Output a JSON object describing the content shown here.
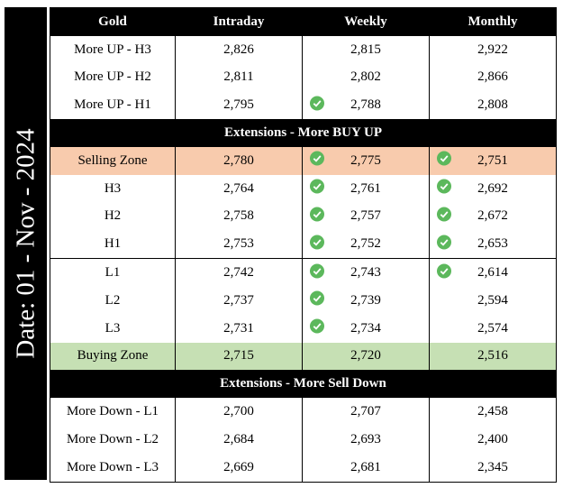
{
  "date_label": "Date: 01 - Nov - 2024",
  "table": {
    "header": [
      "Gold",
      "Intraday",
      "Weekly",
      "Monthly"
    ],
    "rows": [
      {
        "cells": [
          "More UP - H3",
          "2,826",
          "2,815",
          "2,922"
        ]
      },
      {
        "cells": [
          "More UP - H2",
          "2,811",
          "2,802",
          "2,866"
        ]
      },
      {
        "cells": [
          "More UP - H1",
          "2,795",
          "2,788",
          "2,808"
        ],
        "checks": [
          false,
          false,
          true,
          false
        ]
      },
      {
        "band": "Extensions - More BUY UP"
      },
      {
        "cells": [
          "Selling Zone",
          "2,780",
          "2,775",
          "2,751"
        ],
        "checks": [
          false,
          false,
          true,
          true
        ],
        "shade": "#f8cbad"
      },
      {
        "cells": [
          "H3",
          "2,764",
          "2,761",
          "2,692"
        ],
        "checks": [
          false,
          false,
          true,
          true
        ]
      },
      {
        "cells": [
          "H2",
          "2,758",
          "2,757",
          "2,672"
        ],
        "checks": [
          false,
          false,
          true,
          true
        ]
      },
      {
        "cells": [
          "H1",
          "2,753",
          "2,752",
          "2,653"
        ],
        "checks": [
          false,
          false,
          true,
          true
        ]
      },
      {
        "cells": [
          "L1",
          "2,742",
          "2,743",
          "2,614"
        ],
        "checks": [
          false,
          false,
          true,
          true
        ],
        "rule_above": true
      },
      {
        "cells": [
          "L2",
          "2,737",
          "2,739",
          "2,594"
        ],
        "checks": [
          false,
          false,
          true,
          false
        ]
      },
      {
        "cells": [
          "L3",
          "2,731",
          "2,734",
          "2,574"
        ],
        "checks": [
          false,
          false,
          true,
          false
        ]
      },
      {
        "cells": [
          "Buying Zone",
          "2,715",
          "2,720",
          "2,516"
        ],
        "shade": "#c6e0b4"
      },
      {
        "band": "Extensions - More Sell Down"
      },
      {
        "cells": [
          "More Down - L1",
          "2,700",
          "2,707",
          "2,458"
        ]
      },
      {
        "cells": [
          "More Down - L2",
          "2,684",
          "2,693",
          "2,400"
        ]
      },
      {
        "cells": [
          "More Down - L3",
          "2,669",
          "2,681",
          "2,345"
        ]
      }
    ]
  }
}
